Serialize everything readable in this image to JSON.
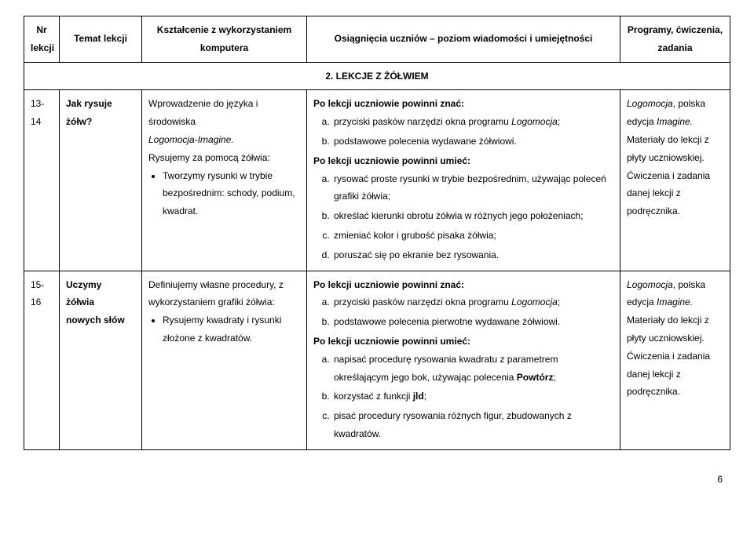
{
  "header": {
    "nr": "Nr lekcji",
    "temat": "Temat lekcji",
    "kszt": "Kształcenie z wykorzystaniem komputera",
    "osi": "Osiągnięcia uczniów – poziom wiadomości i umiejętności",
    "prog": "Programy, ćwiczenia, zadania"
  },
  "section": "2. LEKCJE Z ŻÓŁWIEM",
  "row1": {
    "nr": "13-14",
    "temat1": "Jak rysuje",
    "temat2": "żółw?",
    "kszt_intro": "Wprowadzenie do języka i środowiska",
    "kszt_logo": "Logomocja-Imagine.",
    "kszt_rys": "Rysujemy za pomocą żółwia:",
    "kszt_b1a": "Tworzymy rysunki w trybie",
    "kszt_b1b": "bezpośrednim: schody, podium,",
    "kszt_b1c": "kwadrat.",
    "znac": "Po lekcji uczniowie powinni znać:",
    "znac_a": "przyciski pasków narzędzi okna programu ",
    "znac_a_it": "Logomocja",
    "znac_a_end": ";",
    "znac_b": "podstawowe polecenia wydawane żółwiowi.",
    "umiec": "Po lekcji uczniowie powinni umieć:",
    "um_a": "rysować proste rysunki w trybie bezpośrednim, używając poleceń grafiki żółwia;",
    "um_b": " określać kierunki obrotu żółwia w różnych jego położeniach;",
    "um_c": "zmieniać kolor i grubość pisaka żółwia;",
    "um_d": "poruszać się po ekranie bez rysowania.",
    "prog_l1a": "Logomocja",
    "prog_l1b": ", polska",
    "prog_l2a": "edycja ",
    "prog_l2b": "Imagine.",
    "prog_l3": "Materiały do lekcji z",
    "prog_l4": "płyty uczniowskiej.",
    "prog_l5": "Ćwiczenia i zadania",
    "prog_l6": "danej lekcji z",
    "prog_l7": "podręcznika."
  },
  "row2": {
    "nr": "15-16",
    "temat1": "Uczymy",
    "temat2": "żółwia",
    "temat3": "nowych słów",
    "kszt_l1": "Definiujemy własne procedury, z",
    "kszt_l2": "wykorzystaniem grafiki żółwia:",
    "kszt_b1a": "Rysujemy kwadraty i rysunki",
    "kszt_b1b": "złożone z kwadratów.",
    "znac": "Po lekcji uczniowie powinni znać:",
    "znac_a": "przyciski pasków narzędzi okna programu ",
    "znac_a_it": "Logomocja",
    "znac_a_end": ";",
    "znac_b": "podstawowe polecenia pierwotne wydawane żółwiowi.",
    "umiec": "Po lekcji uczniowie powinni umieć:",
    "um_a1": "napisać procedurę rysowania kwadratu z parametrem określającym jego bok, używając polecenia ",
    "um_a1b": "Powtórz",
    "um_a1c": ";",
    "um_b1": "korzystać z funkcji ",
    "um_b1b": "jld",
    "um_b1c": ";",
    "um_c": "pisać procedury rysowania różnych figur, zbudowanych z kwadratów.",
    "prog_l1a": "Logomocja",
    "prog_l1b": ", polska",
    "prog_l2a": "edycja ",
    "prog_l2b": "Imagine.",
    "prog_l3": "Materiały do lekcji z",
    "prog_l4": "płyty uczniowskiej.",
    "prog_l5": "Ćwiczenia i zadania",
    "prog_l6": "danej lekcji z",
    "prog_l7": "podręcznika."
  },
  "page": "6"
}
